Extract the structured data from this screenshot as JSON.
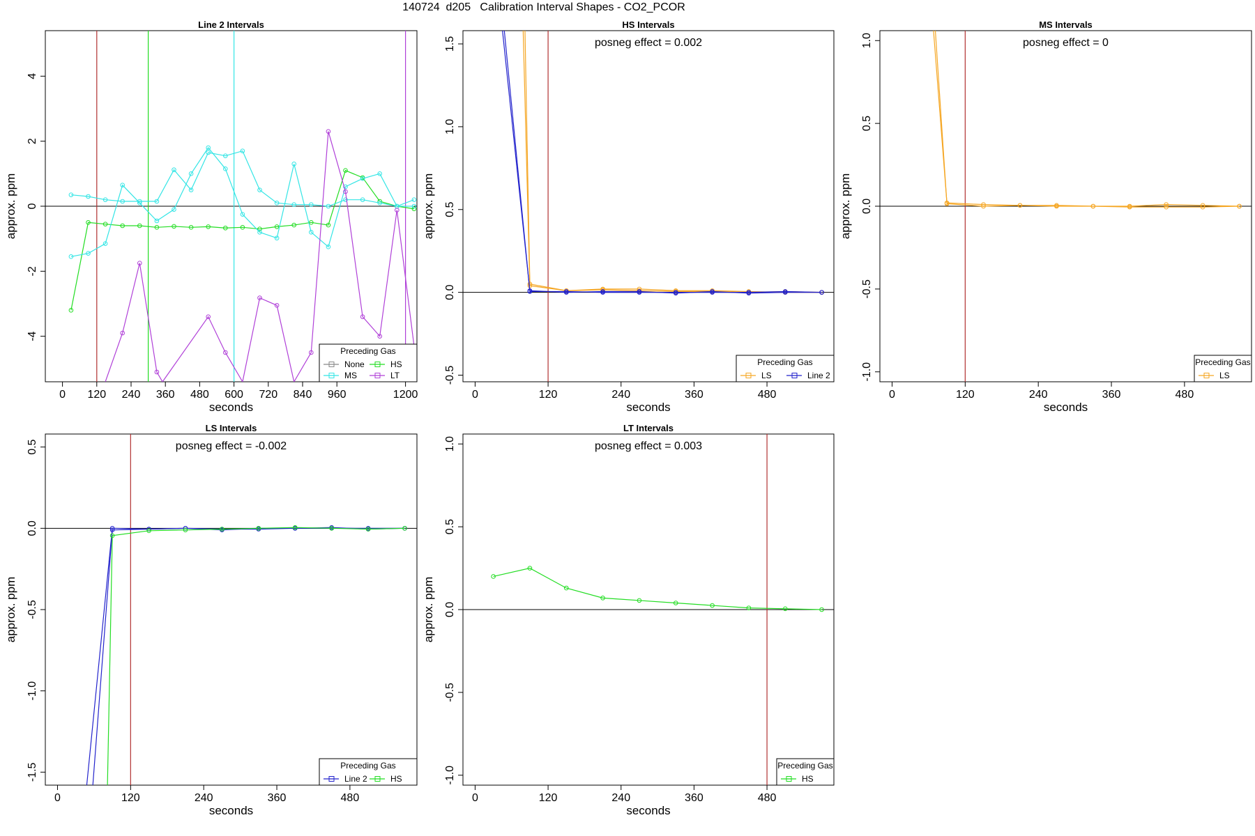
{
  "figure_title": "140724  d205   Calibration Interval Shapes - CO2_PCOR",
  "colors": {
    "None": "#888888",
    "HS": "#22dd22",
    "MS": "#33e5e5",
    "LT": "#b040d8",
    "LS": "#f5a623",
    "Line 2": "#2222cc",
    "marker": "#b03030",
    "zero": "#000000"
  },
  "chart_data": [
    {
      "type": "line",
      "title": "Line 2 Intervals",
      "annotation": "",
      "xlabel": "seconds",
      "ylabel": "approx. ppm",
      "xlim": [
        -60,
        1240
      ],
      "ylim": [
        -5.4,
        5.4
      ],
      "xticks": [
        0,
        120,
        240,
        360,
        480,
        600,
        720,
        840,
        960,
        1200
      ],
      "xtick_labels": [
        "0",
        "120",
        "240",
        "360",
        "480",
        "600",
        "720",
        "840",
        "960",
        "1200"
      ],
      "yticks": [
        -4,
        -2,
        0,
        2,
        4
      ],
      "ytick_labels": [
        "-4",
        "-2",
        "0",
        "2",
        "4"
      ],
      "vlines": [
        {
          "x": 120,
          "series": "marker"
        },
        {
          "x": 300,
          "series": "HS"
        },
        {
          "x": 600,
          "series": "MS"
        },
        {
          "x": 1200,
          "series": "LT"
        }
      ],
      "legend": {
        "title": "Preceding Gas",
        "cols": 2,
        "entries": [
          "None",
          "HS",
          "MS",
          "LT"
        ]
      },
      "series": [
        {
          "name": "HS",
          "lines": [
            {
              "x": [
                30,
                90,
                150,
                210,
                270,
                330,
                390,
                450,
                510,
                570,
                630,
                690,
                750,
                810,
                870,
                930,
                990,
                1050,
                1110,
                1170,
                1230
              ],
              "y": [
                -3.2,
                -0.5,
                -0.55,
                -0.6,
                -0.6,
                -0.65,
                -0.62,
                -0.65,
                -0.63,
                -0.67,
                -0.65,
                -0.7,
                -0.63,
                -0.58,
                -0.5,
                -0.58,
                1.1,
                0.88,
                0.15,
                0.0,
                -0.08
              ]
            }
          ]
        },
        {
          "name": "MS",
          "lines": [
            {
              "x": [
                30,
                90,
                150,
                210,
                270,
                330,
                390,
                450,
                510,
                570,
                630,
                690,
                750,
                810,
                870,
                930,
                990,
                1050,
                1110,
                1170,
                1230
              ],
              "y": [
                0.35,
                0.3,
                0.2,
                0.15,
                0.15,
                0.15,
                1.12,
                0.5,
                1.65,
                1.55,
                1.7,
                0.5,
                0.1,
                0.05,
                0.05,
                0.0,
                0.2,
                0.2,
                0.1,
                0.0,
                0.2
              ]
            },
            {
              "x": [
                30,
                90,
                150,
                210,
                270,
                330,
                390,
                450,
                510,
                570,
                630,
                690,
                750,
                810,
                870,
                930,
                990,
                1050,
                1110,
                1170,
                1230
              ],
              "y": [
                -1.55,
                -1.45,
                -1.15,
                0.65,
                0.1,
                -0.45,
                -0.1,
                1.0,
                1.8,
                1.15,
                -0.25,
                -0.8,
                -0.98,
                1.3,
                -0.8,
                -1.25,
                0.6,
                0.85,
                1.0,
                0.0,
                0.0
              ]
            }
          ]
        },
        {
          "name": "LT",
          "lines": [
            {
              "x": [
                150,
                210,
                270,
                330,
                350,
                510,
                570,
                630,
                690,
                750,
                810,
                870,
                930,
                990,
                1050,
                1110,
                1170,
                1230
              ],
              "y": [
                -5.4,
                -3.9,
                -1.75,
                -5.1,
                -5.4,
                -3.4,
                -4.5,
                -5.4,
                -2.82,
                -3.05,
                -5.4,
                -4.5,
                2.3,
                0.45,
                -3.4,
                -4.0,
                -0.12,
                -4.3
              ]
            }
          ]
        }
      ]
    },
    {
      "type": "line",
      "title": "HS Intervals",
      "annotation": "posneg effect = 0.002",
      "xlabel": "seconds",
      "ylabel": "approx. ppm",
      "xlim": [
        -20,
        590
      ],
      "ylim": [
        -0.54,
        1.58
      ],
      "xticks": [
        0,
        120,
        240,
        360,
        480
      ],
      "xtick_labels": [
        "0",
        "120",
        "240",
        "360",
        "480"
      ],
      "yticks": [
        -0.5,
        0.0,
        0.5,
        1.0,
        1.5
      ],
      "ytick_labels": [
        "-0.5",
        "0.0",
        "0.5",
        "1.0",
        "1.5"
      ],
      "vlines": [
        {
          "x": 120,
          "series": "marker"
        }
      ],
      "legend": {
        "title": "Preceding Gas",
        "cols": 2,
        "entries": [
          "LS",
          "Line 2"
        ]
      },
      "series": [
        {
          "name": "LS",
          "lines": [
            {
              "x": [
                79,
                90,
                150,
                210,
                270,
                330,
                390,
                450,
                510,
                570
              ],
              "y": [
                1.58,
                0.04,
                0.01,
                0.02,
                0.02,
                0.01,
                0.01,
                0.005,
                0.0,
                0.0
              ]
            },
            {
              "x": [
                82,
                90,
                150,
                210,
                270,
                330,
                390,
                450,
                510,
                570
              ],
              "y": [
                1.58,
                0.05,
                0.01,
                0.015,
                0.01,
                0.005,
                0.005,
                0.0,
                0.005,
                0.0
              ]
            }
          ]
        },
        {
          "name": "Line 2",
          "lines": [
            {
              "x": [
                45,
                90,
                150,
                210,
                270,
                330,
                390,
                450,
                510,
                570
              ],
              "y": [
                1.58,
                0.01,
                0.0,
                0.005,
                0.005,
                -0.005,
                0.005,
                -0.005,
                0.0,
                0.0
              ]
            },
            {
              "x": [
                48,
                90,
                150,
                210,
                270,
                330,
                390,
                450,
                510,
                570
              ],
              "y": [
                1.58,
                0.005,
                0.005,
                0.0,
                0.0,
                0.0,
                0.0,
                0.0,
                0.005,
                0.0
              ]
            }
          ]
        }
      ]
    },
    {
      "type": "line",
      "title": "MS Intervals",
      "annotation": "posneg effect = 0",
      "xlabel": "seconds",
      "ylabel": "approx. ppm",
      "xlim": [
        -20,
        590
      ],
      "ylim": [
        -1.06,
        1.06
      ],
      "xticks": [
        0,
        120,
        240,
        360,
        480
      ],
      "xtick_labels": [
        "0",
        "120",
        "240",
        "360",
        "480"
      ],
      "yticks": [
        -1.0,
        -0.5,
        0.0,
        0.5,
        1.0
      ],
      "ytick_labels": [
        "-1.0",
        "-0.5",
        "0.0",
        "0.5",
        "1.0"
      ],
      "vlines": [
        {
          "x": 120,
          "series": "marker"
        }
      ],
      "legend": {
        "title": "Preceding Gas",
        "cols": 1,
        "entries": [
          "LS"
        ]
      },
      "series": [
        {
          "name": "LS",
          "lines": [
            {
              "x": [
                68,
                90,
                150,
                210,
                270,
                330,
                390,
                450,
                510,
                570
              ],
              "y": [
                1.06,
                0.02,
                0.01,
                0.005,
                0.005,
                0.0,
                0.0,
                0.01,
                0.005,
                0.0
              ]
            },
            {
              "x": [
                71,
                90,
                150,
                210,
                270,
                330,
                390,
                450,
                510,
                570
              ],
              "y": [
                1.06,
                0.015,
                0.0,
                0.005,
                0.0,
                0.0,
                -0.005,
                -0.005,
                -0.005,
                0.0
              ]
            }
          ]
        }
      ]
    },
    {
      "type": "line",
      "title": "LS Intervals",
      "annotation": "posneg effect = -0.002",
      "xlabel": "seconds",
      "ylabel": "approx. ppm",
      "xlim": [
        -20,
        590
      ],
      "ylim": [
        -1.58,
        0.58
      ],
      "xticks": [
        0,
        120,
        240,
        360,
        480
      ],
      "xtick_labels": [
        "0",
        "120",
        "240",
        "360",
        "480"
      ],
      "yticks": [
        -1.5,
        -1.0,
        -0.5,
        0.0,
        0.5
      ],
      "ytick_labels": [
        "-1.5",
        "-1.0",
        "-0.5",
        "0.0",
        "0.5"
      ],
      "vlines": [
        {
          "x": 120,
          "series": "marker"
        }
      ],
      "legend": {
        "title": "Preceding Gas",
        "cols": 2,
        "entries": [
          "Line 2",
          "HS"
        ]
      },
      "series": [
        {
          "name": "Line 2",
          "lines": [
            {
              "x": [
                48,
                90,
                150,
                210,
                270,
                330,
                390,
                450,
                510,
                570
              ],
              "y": [
                -1.58,
                0.0,
                -0.005,
                0.0,
                -0.01,
                0.0,
                0.0,
                0.005,
                -0.005,
                0.0
              ]
            },
            {
              "x": [
                58,
                90,
                150,
                210,
                270,
                330,
                390,
                450,
                510,
                570
              ],
              "y": [
                -1.58,
                -0.01,
                -0.005,
                0.0,
                -0.005,
                -0.005,
                0.0,
                0.0,
                0.0,
                0.0
              ]
            }
          ]
        },
        {
          "name": "HS",
          "lines": [
            {
              "x": [
                82,
                90,
                150,
                210,
                270,
                330,
                390,
                450,
                510,
                570
              ],
              "y": [
                -1.58,
                -0.045,
                -0.015,
                -0.01,
                -0.005,
                0.0,
                0.005,
                0.0,
                -0.005,
                0.0
              ]
            }
          ]
        }
      ]
    },
    {
      "type": "line",
      "title": "LT Intervals",
      "annotation": "posneg effect = 0.003",
      "xlabel": "seconds",
      "ylabel": "approx. ppm",
      "xlim": [
        -20,
        590
      ],
      "ylim": [
        -1.06,
        1.06
      ],
      "xticks": [
        0,
        120,
        240,
        360,
        480
      ],
      "xtick_labels": [
        "0",
        "120",
        "240",
        "360",
        "480"
      ],
      "yticks": [
        -1.0,
        -0.5,
        0.0,
        0.5,
        1.0
      ],
      "ytick_labels": [
        "-1.0",
        "-0.5",
        "0.0",
        "0.5",
        "1.0"
      ],
      "vlines": [
        {
          "x": 480,
          "series": "marker"
        }
      ],
      "legend": {
        "title": "Preceding Gas",
        "cols": 1,
        "entries": [
          "HS"
        ]
      },
      "series": [
        {
          "name": "HS",
          "lines": [
            {
              "x": [
                30,
                90,
                150,
                210,
                270,
                330,
                390,
                450,
                510,
                570
              ],
              "y": [
                0.2,
                0.25,
                0.13,
                0.07,
                0.055,
                0.04,
                0.025,
                0.01,
                0.005,
                0.0
              ]
            }
          ]
        }
      ]
    }
  ]
}
